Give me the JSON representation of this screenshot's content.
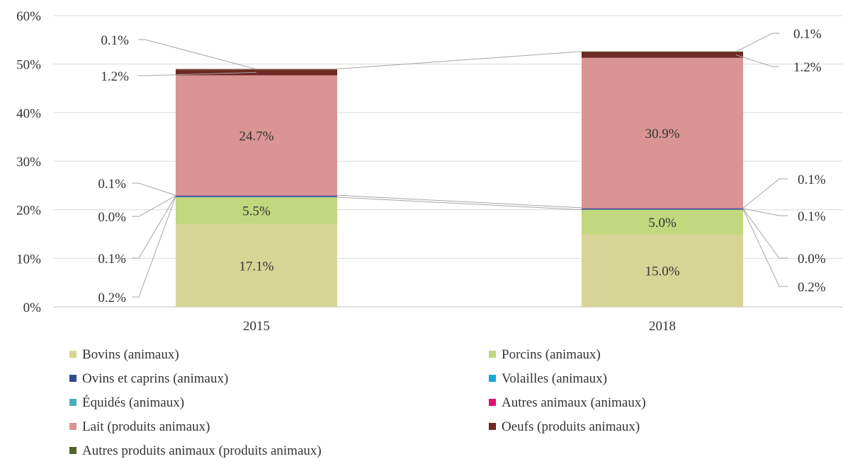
{
  "chart_data": {
    "type": "bar",
    "stacked": true,
    "categories": [
      "2015",
      "2018"
    ],
    "ylim": [
      0,
      60
    ],
    "yticks": [
      "0%",
      "10%",
      "20%",
      "30%",
      "40%",
      "50%",
      "60%"
    ],
    "grid": true,
    "legend_position": "bottom",
    "series": [
      {
        "name": "Bovins (animaux)",
        "color": "#d6d595",
        "values": [
          17.1,
          15.0
        ],
        "labels": [
          "17.1%",
          "15.0%"
        ]
      },
      {
        "name": "Porcins (animaux)",
        "color": "#c3d77e",
        "values": [
          5.5,
          5.0
        ],
        "labels": [
          "5.5%",
          "5.0%"
        ]
      },
      {
        "name": "Ovins et caprins (animaux)",
        "color": "#2e4a87",
        "values": [
          0.2,
          0.2
        ],
        "labels": [
          "0.2%",
          "0.2%"
        ]
      },
      {
        "name": "Volailles (animaux)",
        "color": "#1aa7d8",
        "values": [
          0.1,
          0.0
        ],
        "labels": [
          "0.1%",
          "0.0%"
        ]
      },
      {
        "name": "Équidés (animaux)",
        "color": "#4eacc0",
        "values": [
          0.0,
          0.1
        ],
        "labels": [
          "0.0%",
          "0.1%"
        ]
      },
      {
        "name": "Autres animaux (animaux)",
        "color": "#e0116f",
        "values": [
          0.1,
          0.1
        ],
        "labels": [
          "0.1%",
          "0.1%"
        ]
      },
      {
        "name": "Lait (produits animaux)",
        "color": "#d99594",
        "values": [
          24.7,
          30.9
        ],
        "labels": [
          "24.7%",
          "30.9%"
        ]
      },
      {
        "name": "Oeufs (produits animaux)",
        "color": "#6e2a25",
        "values": [
          1.2,
          1.2
        ],
        "labels": [
          "1.2%",
          "1.2%"
        ]
      },
      {
        "name": "Autres produits animaux (produits animaux)",
        "color": "#4f6228",
        "values": [
          0.1,
          0.1
        ],
        "labels": [
          "0.1%",
          "0.1%"
        ]
      }
    ]
  }
}
